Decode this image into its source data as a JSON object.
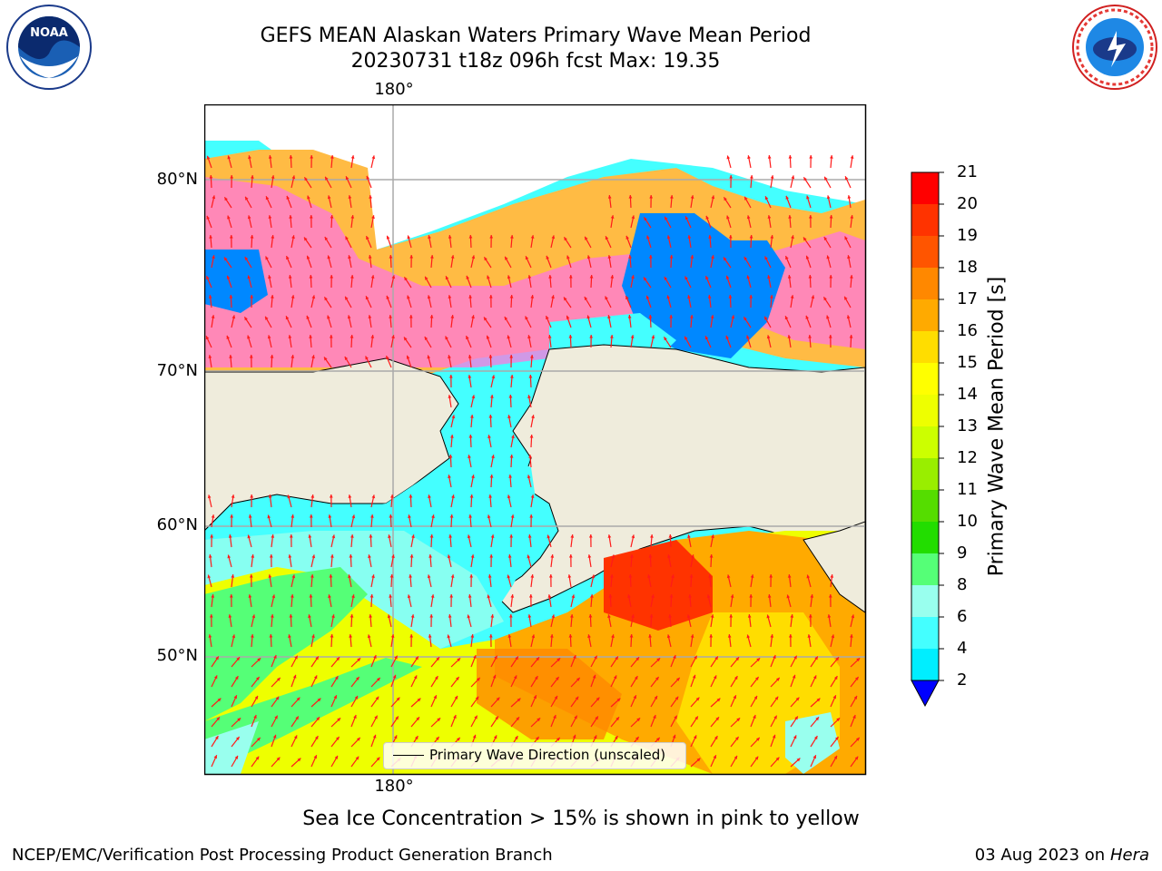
{
  "title": {
    "line1": "GEFS MEAN Alaskan Waters Primary Wave Mean Period",
    "line2": "20230731 t18z 096h fcst   Max: 19.35"
  },
  "logos": {
    "left_text": "NOAA",
    "right_text": "NATIONAL WEATHER SERVICE"
  },
  "map": {
    "lon_label_top": "180°",
    "lon_label_bottom": "180°",
    "lat_labels": [
      "80°N",
      "70°N",
      "60°N",
      "50°N"
    ],
    "legend_label": "Primary Wave Direction (unscaled)",
    "colors": {
      "land": "#efecdc",
      "ice_pink": "#ff66ee",
      "ice_orange": "#ffc040",
      "arrow": "#ff1a1a"
    }
  },
  "colorbar": {
    "label": "Primary Wave Mean Period [s]",
    "ticks": [
      "21",
      "20",
      "19",
      "18",
      "17",
      "16",
      "15",
      "14",
      "13",
      "12",
      "11",
      "10",
      "9",
      "8",
      "6",
      "4",
      "2"
    ],
    "colors": [
      "#ff0000",
      "#ff3300",
      "#ff5500",
      "#ff8800",
      "#ffaa00",
      "#ffdd00",
      "#ffff00",
      "#eeff00",
      "#ccff00",
      "#99ee00",
      "#55dd00",
      "#22dd00",
      "#55ff77",
      "#99ffee",
      "#44ffff",
      "#00eeff",
      "#0088ff"
    ],
    "extend_color": "#0000ff"
  },
  "note": "Sea Ice Concentration > 15% is shown in pink to yellow",
  "footer": {
    "left": "NCEP/EMC/Verification Post Processing Product Generation Branch",
    "right_date": "03 Aug 2023 on",
    "right_machine": "Hera"
  }
}
